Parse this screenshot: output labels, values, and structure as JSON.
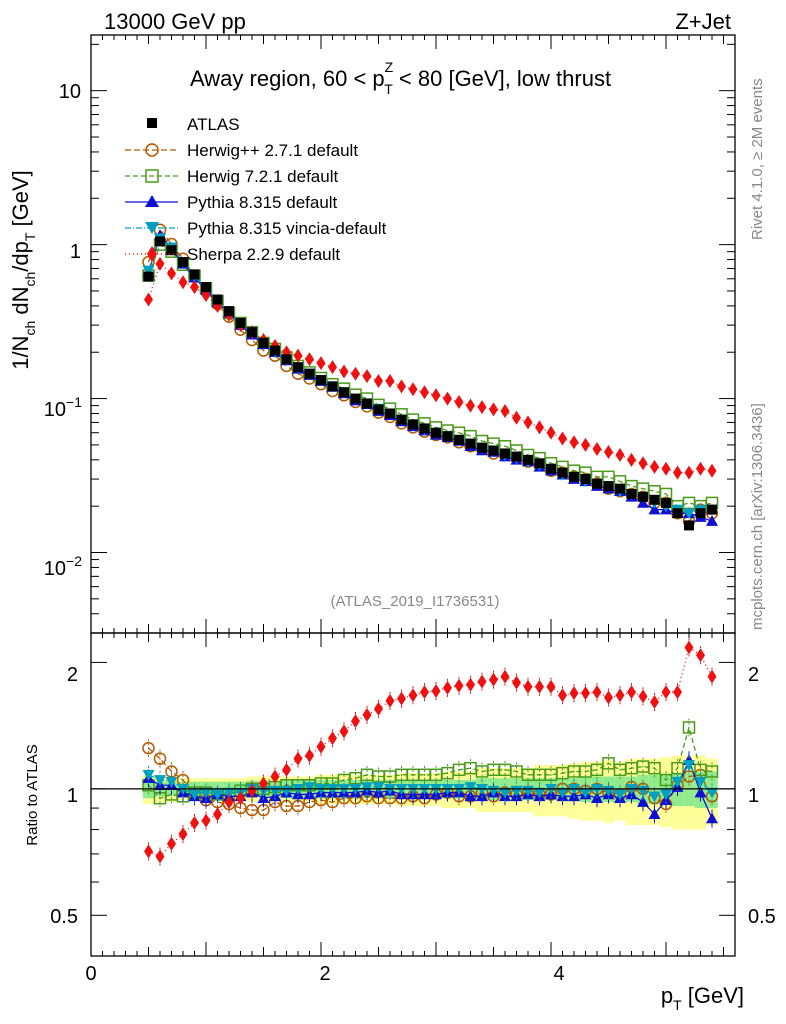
{
  "header": {
    "energy_label": "13000 GeV pp",
    "process_label": "Z+Jet"
  },
  "side": {
    "rivet_label": "Rivet 4.1.0, ≥ 2M events",
    "mcplots_label": "mcplots.cern.ch [arXiv:1306.3436]"
  },
  "chart_data": {
    "type": "scatter",
    "title": "Away region, 60 < p_T^Z < 80 [GeV], low thrust",
    "title_parts": {
      "pre": "Away region, 60 < p",
      "sup": "Z",
      "sub": "T",
      "post": " < 80 [GeV], low thrust"
    },
    "analysis_label": "(ATLAS_2019_I1736531)",
    "xlabel": "p_T [GeV]",
    "xlabel_parts": {
      "main": "p",
      "sub": "T",
      "unit": " [GeV]"
    },
    "ylabel": "1/N_ch dN_ch/dp_T [GeV]",
    "ylabel_parts": {
      "a": "1/N",
      "a_sub": "ch",
      "b": " dN",
      "b_sub": "ch",
      "c": "/dp",
      "c_sub": "T",
      "d": " [GeV]"
    },
    "ratio_ylabel": "Ratio to ATLAS",
    "xlim": [
      0,
      5.6
    ],
    "ylim": [
      0.003,
      23
    ],
    "yscale": "log",
    "ratio_ylim": [
      0.4,
      2.35
    ],
    "ratio_yscale": "log",
    "x_ticks": [
      "0",
      "2",
      "4"
    ],
    "y_ticks": [
      {
        "base": "10",
        "exp": "",
        "value": 10
      },
      {
        "base": "1",
        "exp": "",
        "value": 1
      },
      {
        "base": "10",
        "exp": "−1",
        "value": 0.1
      },
      {
        "base": "10",
        "exp": "−2",
        "value": 0.01
      }
    ],
    "ratio_ticks": [
      "2",
      "1",
      "0.5"
    ],
    "legend_placement": "top-left",
    "x": [
      0.5,
      0.6,
      0.7,
      0.8,
      0.9,
      1.0,
      1.1,
      1.2,
      1.3,
      1.4,
      1.5,
      1.6,
      1.7,
      1.8,
      1.9,
      2.0,
      2.1,
      2.2,
      2.3,
      2.4,
      2.5,
      2.6,
      2.7,
      2.8,
      2.9,
      3.0,
      3.1,
      3.2,
      3.3,
      3.4,
      3.5,
      3.6,
      3.7,
      3.8,
      3.9,
      4.0,
      4.1,
      4.2,
      4.3,
      4.4,
      4.5,
      4.6,
      4.7,
      4.8,
      4.9,
      5.0,
      5.1,
      5.2,
      5.3,
      5.4
    ],
    "data": {
      "name": "ATLAS",
      "values": [
        0.62,
        1.05,
        0.92,
        0.77,
        0.64,
        0.53,
        0.44,
        0.37,
        0.31,
        0.27,
        0.23,
        0.205,
        0.18,
        0.16,
        0.145,
        0.132,
        0.12,
        0.11,
        0.1,
        0.093,
        0.085,
        0.08,
        0.073,
        0.068,
        0.064,
        0.06,
        0.057,
        0.054,
        0.051,
        0.048,
        0.046,
        0.044,
        0.042,
        0.04,
        0.038,
        0.035,
        0.033,
        0.031,
        0.03,
        0.028,
        0.027,
        0.026,
        0.024,
        0.023,
        0.022,
        0.021,
        0.018,
        0.015,
        0.018,
        0.019
      ],
      "band_inner": [
        0.05,
        0.04,
        0.04,
        0.04,
        0.04,
        0.04,
        0.04,
        0.04,
        0.04,
        0.045,
        0.045,
        0.045,
        0.05,
        0.05,
        0.05,
        0.05,
        0.05,
        0.05,
        0.05,
        0.05,
        0.05,
        0.05,
        0.05,
        0.05,
        0.05,
        0.05,
        0.05,
        0.05,
        0.05,
        0.06,
        0.06,
        0.06,
        0.06,
        0.06,
        0.06,
        0.06,
        0.06,
        0.06,
        0.07,
        0.07,
        0.07,
        0.07,
        0.07,
        0.08,
        0.08,
        0.08,
        0.09,
        0.09,
        0.1,
        0.1
      ],
      "band_outer": [
        0.08,
        0.07,
        0.07,
        0.06,
        0.06,
        0.06,
        0.06,
        0.06,
        0.06,
        0.07,
        0.07,
        0.07,
        0.07,
        0.07,
        0.07,
        0.08,
        0.08,
        0.08,
        0.08,
        0.08,
        0.08,
        0.08,
        0.09,
        0.09,
        0.09,
        0.09,
        0.1,
        0.1,
        0.1,
        0.12,
        0.12,
        0.12,
        0.12,
        0.12,
        0.14,
        0.14,
        0.14,
        0.15,
        0.16,
        0.16,
        0.17,
        0.16,
        0.18,
        0.18,
        0.18,
        0.19,
        0.2,
        0.2,
        0.2,
        0.18
      ]
    },
    "series": [
      {
        "name": "Herwig++ 2.7.1 default",
        "color": "#b35900",
        "marker": "circle-open",
        "dash": "6,3",
        "values": [
          0.77,
          1.25,
          1.01,
          0.81,
          0.62,
          0.5,
          0.41,
          0.34,
          0.28,
          0.24,
          0.205,
          0.19,
          0.163,
          0.145,
          0.135,
          0.124,
          0.112,
          0.105,
          0.095,
          0.089,
          0.081,
          0.076,
          0.069,
          0.065,
          0.061,
          0.058,
          0.056,
          0.052,
          0.049,
          0.047,
          0.044,
          0.043,
          0.041,
          0.039,
          0.037,
          0.034,
          0.033,
          0.031,
          0.03,
          0.028,
          0.026,
          0.025,
          0.024,
          0.023,
          0.021,
          0.021,
          0.018,
          0.016,
          0.019,
          0.018
        ],
        "ratio": [
          1.25,
          1.18,
          1.1,
          1.05,
          0.97,
          0.94,
          0.93,
          0.92,
          0.9,
          0.89,
          0.89,
          0.93,
          0.91,
          0.91,
          0.93,
          0.94,
          0.93,
          0.95,
          0.95,
          0.96,
          0.95,
          0.95,
          0.95,
          0.96,
          0.95,
          0.97,
          0.98,
          0.96,
          0.96,
          0.98,
          0.96,
          0.98,
          0.97,
          0.98,
          0.97,
          0.97,
          1.0,
          1.0,
          0.99,
          1.0,
          0.98,
          0.97,
          1.01,
          1.0,
          0.95,
          0.92,
          1.02,
          1.07,
          1.08,
          0.96
        ]
      },
      {
        "name": "Herwig 7.2.1 default",
        "color": "#4a9a1a",
        "marker": "square-open",
        "dash": "5,3",
        "values": [
          0.63,
          1.0,
          0.9,
          0.74,
          0.63,
          0.52,
          0.43,
          0.36,
          0.31,
          0.27,
          0.23,
          0.21,
          0.185,
          0.163,
          0.148,
          0.136,
          0.124,
          0.116,
          0.106,
          0.1,
          0.091,
          0.086,
          0.079,
          0.073,
          0.069,
          0.065,
          0.062,
          0.06,
          0.057,
          0.053,
          0.051,
          0.049,
          0.046,
          0.043,
          0.041,
          0.038,
          0.036,
          0.034,
          0.033,
          0.031,
          0.031,
          0.029,
          0.027,
          0.026,
          0.025,
          0.024,
          0.02,
          0.021,
          0.02,
          0.021
        ],
        "ratio": [
          1.02,
          0.95,
          0.97,
          0.96,
          0.98,
          0.98,
          0.97,
          0.97,
          0.99,
          1.0,
          1.0,
          1.01,
          1.02,
          1.02,
          1.02,
          1.03,
          1.03,
          1.05,
          1.06,
          1.08,
          1.07,
          1.07,
          1.08,
          1.08,
          1.08,
          1.08,
          1.09,
          1.11,
          1.12,
          1.1,
          1.11,
          1.11,
          1.1,
          1.08,
          1.08,
          1.08,
          1.09,
          1.1,
          1.1,
          1.11,
          1.15,
          1.11,
          1.12,
          1.13,
          1.12,
          1.05,
          1.12,
          1.4,
          1.11,
          1.1
        ]
      },
      {
        "name": "Pythia 8.315 default",
        "color": "#1010d0",
        "marker": "triangle-up",
        "dash": "",
        "values": [
          0.66,
          1.15,
          0.94,
          0.75,
          0.61,
          0.51,
          0.42,
          0.36,
          0.3,
          0.26,
          0.225,
          0.2,
          0.177,
          0.156,
          0.142,
          0.13,
          0.119,
          0.108,
          0.097,
          0.092,
          0.083,
          0.078,
          0.071,
          0.066,
          0.062,
          0.058,
          0.056,
          0.053,
          0.049,
          0.046,
          0.045,
          0.042,
          0.04,
          0.039,
          0.036,
          0.034,
          0.032,
          0.03,
          0.029,
          0.027,
          0.026,
          0.025,
          0.023,
          0.021,
          0.019,
          0.019,
          0.018,
          0.018,
          0.017,
          0.016
        ],
        "ratio": [
          1.06,
          1.02,
          1.02,
          0.98,
          0.96,
          0.95,
          0.97,
          0.96,
          0.96,
          0.98,
          0.95,
          0.96,
          0.98,
          0.97,
          0.97,
          0.98,
          0.98,
          0.98,
          0.98,
          0.99,
          0.98,
          0.99,
          0.97,
          0.97,
          0.97,
          0.97,
          0.98,
          0.98,
          0.96,
          0.96,
          0.98,
          0.96,
          0.96,
          0.97,
          0.96,
          0.97,
          0.96,
          0.96,
          0.97,
          0.95,
          0.97,
          0.95,
          0.97,
          0.93,
          0.87,
          0.94,
          1.01,
          1.17,
          0.98,
          0.85
        ]
      },
      {
        "name": "Pythia 8.315 vincia-default",
        "color": "#00a0c0",
        "marker": "triangle-down",
        "dash": "6,2,1,2",
        "values": [
          0.68,
          1.1,
          0.96,
          0.77,
          0.62,
          0.52,
          0.43,
          0.36,
          0.3,
          0.27,
          0.23,
          0.2,
          0.178,
          0.158,
          0.146,
          0.132,
          0.12,
          0.11,
          0.1,
          0.093,
          0.086,
          0.08,
          0.073,
          0.068,
          0.063,
          0.06,
          0.057,
          0.054,
          0.051,
          0.048,
          0.046,
          0.043,
          0.041,
          0.039,
          0.037,
          0.035,
          0.032,
          0.031,
          0.029,
          0.028,
          0.027,
          0.025,
          0.024,
          0.023,
          0.021,
          0.02,
          0.019,
          0.018,
          0.019,
          0.019
        ],
        "ratio": [
          1.08,
          1.05,
          1.04,
          1.0,
          0.97,
          0.98,
          0.97,
          0.98,
          0.98,
          1.0,
          0.99,
          0.99,
          0.99,
          1.0,
          1.01,
          1.0,
          1.0,
          1.0,
          1.0,
          1.01,
          1.01,
          1.0,
          1.0,
          1.0,
          1.0,
          1.0,
          1.0,
          1.0,
          1.01,
          1.0,
          0.99,
          0.98,
          0.99,
          0.99,
          0.98,
          1.0,
          0.98,
          1.0,
          0.98,
          1.0,
          0.99,
          0.97,
          1.0,
          0.99,
          0.96,
          0.97,
          1.04,
          1.14,
          1.04,
          0.98
        ]
      },
      {
        "name": "Sherpa 2.2.9 default",
        "color": "#ee1111",
        "marker": "diamond",
        "dash": "1,3",
        "values": [
          0.44,
          0.75,
          0.65,
          0.57,
          0.53,
          0.47,
          0.4,
          0.35,
          0.3,
          0.27,
          0.24,
          0.22,
          0.2,
          0.19,
          0.18,
          0.17,
          0.16,
          0.15,
          0.145,
          0.14,
          0.13,
          0.13,
          0.12,
          0.115,
          0.11,
          0.105,
          0.1,
          0.095,
          0.09,
          0.088,
          0.085,
          0.083,
          0.075,
          0.07,
          0.065,
          0.06,
          0.055,
          0.052,
          0.05,
          0.047,
          0.045,
          0.043,
          0.04,
          0.038,
          0.036,
          0.035,
          0.033,
          0.033,
          0.035,
          0.034
        ],
        "ratio": [
          0.71,
          0.69,
          0.74,
          0.78,
          0.83,
          0.84,
          0.87,
          0.93,
          0.95,
          0.99,
          1.03,
          1.07,
          1.11,
          1.18,
          1.2,
          1.26,
          1.32,
          1.37,
          1.45,
          1.5,
          1.55,
          1.62,
          1.64,
          1.67,
          1.7,
          1.71,
          1.74,
          1.76,
          1.77,
          1.8,
          1.82,
          1.85,
          1.79,
          1.75,
          1.75,
          1.75,
          1.67,
          1.69,
          1.69,
          1.7,
          1.65,
          1.67,
          1.7,
          1.66,
          1.61,
          1.7,
          1.7,
          2.17,
          2.08,
          1.85
        ]
      }
    ]
  }
}
